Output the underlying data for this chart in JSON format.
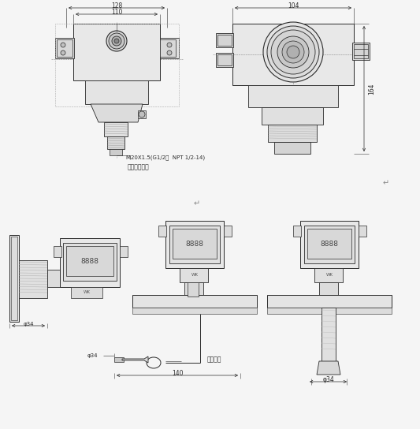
{
  "bg_color": "#f5f5f5",
  "line_color": "#2a2a2a",
  "dim_color": "#2a2a2a",
  "text_color": "#2a2a2a",
  "dim_128": "128",
  "dim_110": "110",
  "dim_104": "104",
  "dim_164": "164",
  "dim_140": "140",
  "dim_034_left": "φ34",
  "dim_034_right": "φ34",
  "thread_text": "M20X1.5(G1/2，  NPT 1/2-14)",
  "user_text": "或由用户指定",
  "cable_text": "导气电缆",
  "return_mark1": "↵",
  "return_mark2": "↵"
}
